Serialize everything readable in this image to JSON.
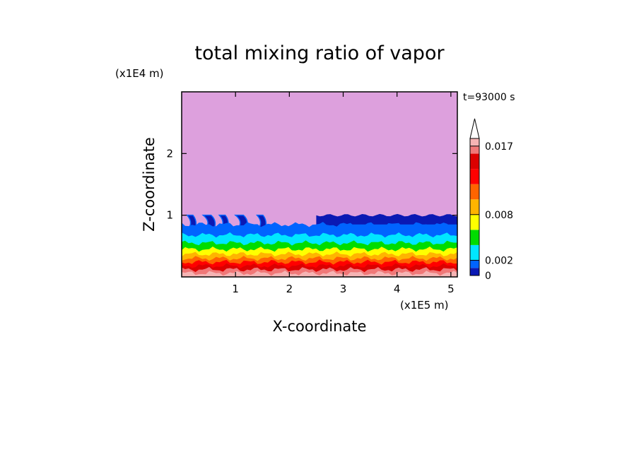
{
  "chart_data": {
    "type": "heatmap",
    "title": "total mixing ratio of vapor",
    "time_label": "t=93000 s",
    "xlabel": "X-coordinate",
    "ylabel": "Z-coordinate",
    "x_unit": "(x1E5 m)",
    "y_unit": "(x1E4 m)",
    "xlim": [
      0,
      5.12
    ],
    "ylim": [
      0,
      3.0
    ],
    "x_ticks": [
      1,
      2,
      3,
      4,
      5
    ],
    "y_ticks": [
      1,
      2
    ],
    "colorbar": {
      "levels": [
        0,
        0.001,
        0.002,
        0.004,
        0.006,
        0.008,
        0.01,
        0.012,
        0.014,
        0.016,
        0.017,
        0.018
      ],
      "colors": [
        "#0a19b4",
        "#0064ff",
        "#00e6ff",
        "#00dc00",
        "#ffff00",
        "#ffb400",
        "#ff6400",
        "#ff0000",
        "#dc0000",
        "#f07878",
        "#f5b4b4"
      ],
      "tick_values": [
        0,
        0.002,
        0.008,
        0.017
      ],
      "tick_labels": [
        "0",
        "0.002",
        "0.008",
        "0.017"
      ],
      "extend": "max",
      "background_color": "#dda0dd"
    },
    "profile": {
      "description_units": "z in x1E4 m",
      "band_tops_z": [
        0.06,
        0.12,
        0.18,
        0.24,
        0.3,
        0.37,
        0.45,
        0.55,
        0.68,
        0.85
      ],
      "upper_limit_z": 1.0
    }
  }
}
